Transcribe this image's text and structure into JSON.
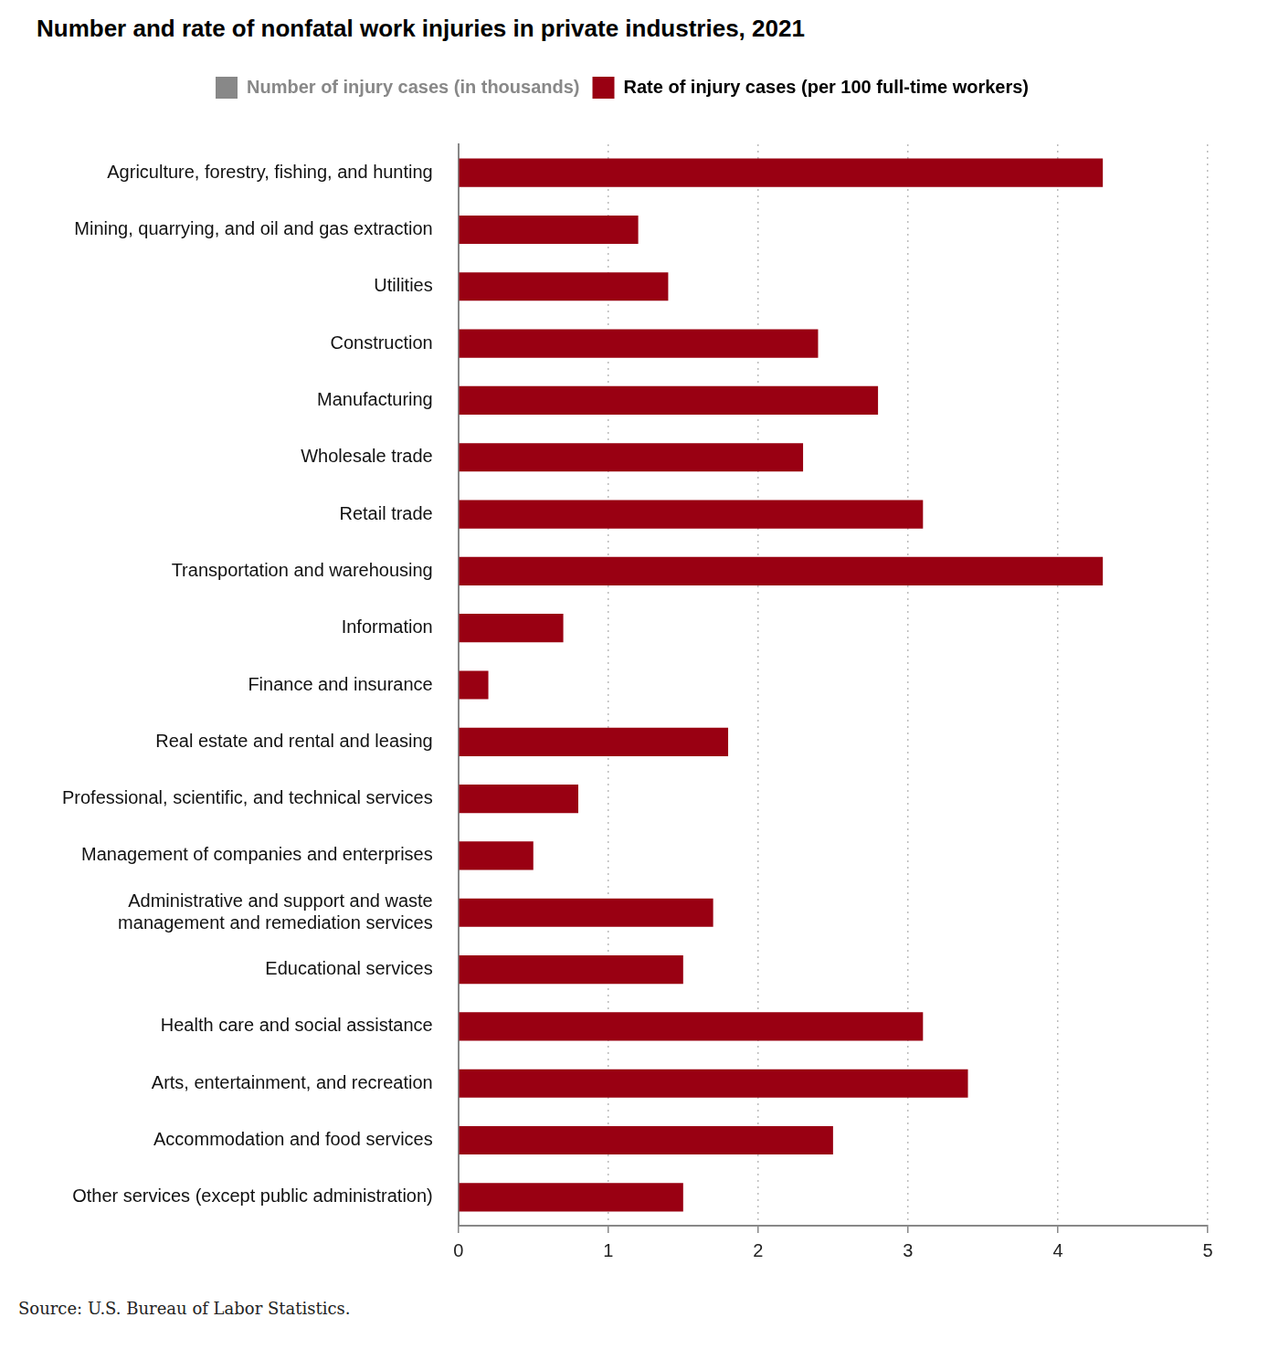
{
  "chart_data": {
    "type": "bar",
    "orientation": "horizontal",
    "title": "Number and rate of nonfatal work injuries in private industries, 2021",
    "source": "Source: U.S. Bureau of Labor Statistics.",
    "categories": [
      "Agriculture, forestry, fishing, and hunting",
      "Mining, quarrying, and oil and gas extraction",
      "Utilities",
      "Construction",
      "Manufacturing",
      "Wholesale trade",
      "Retail trade",
      "Transportation and warehousing",
      "Information",
      "Finance and insurance",
      "Real estate and rental and leasing",
      "Professional, scientific, and technical services",
      "Management of companies and enterprises",
      "Administrative and support and waste management and remediation services",
      "Educational services",
      "Health care and social assistance",
      "Arts, entertainment, and recreation",
      "Accommodation and food services",
      "Other services (except public administration)"
    ],
    "series": [
      {
        "name": "Number of injury cases (in thousands)",
        "color": "#888888",
        "values": [
          null,
          null,
          null,
          null,
          null,
          null,
          null,
          null,
          null,
          null,
          null,
          null,
          null,
          null,
          null,
          null,
          null,
          null,
          null
        ]
      },
      {
        "name": "Rate of injury cases (per 100 full-time workers)",
        "color": "#990012",
        "values": [
          4.3,
          1.2,
          1.4,
          2.4,
          2.8,
          2.3,
          3.1,
          4.3,
          0.7,
          0.2,
          1.8,
          0.8,
          0.5,
          1.7,
          1.5,
          3.1,
          3.4,
          2.5,
          1.5
        ]
      }
    ],
    "xlim": [
      0,
      5
    ],
    "xticks": [
      0,
      1,
      2,
      3,
      4,
      5
    ],
    "grid": true,
    "legend": "top"
  }
}
